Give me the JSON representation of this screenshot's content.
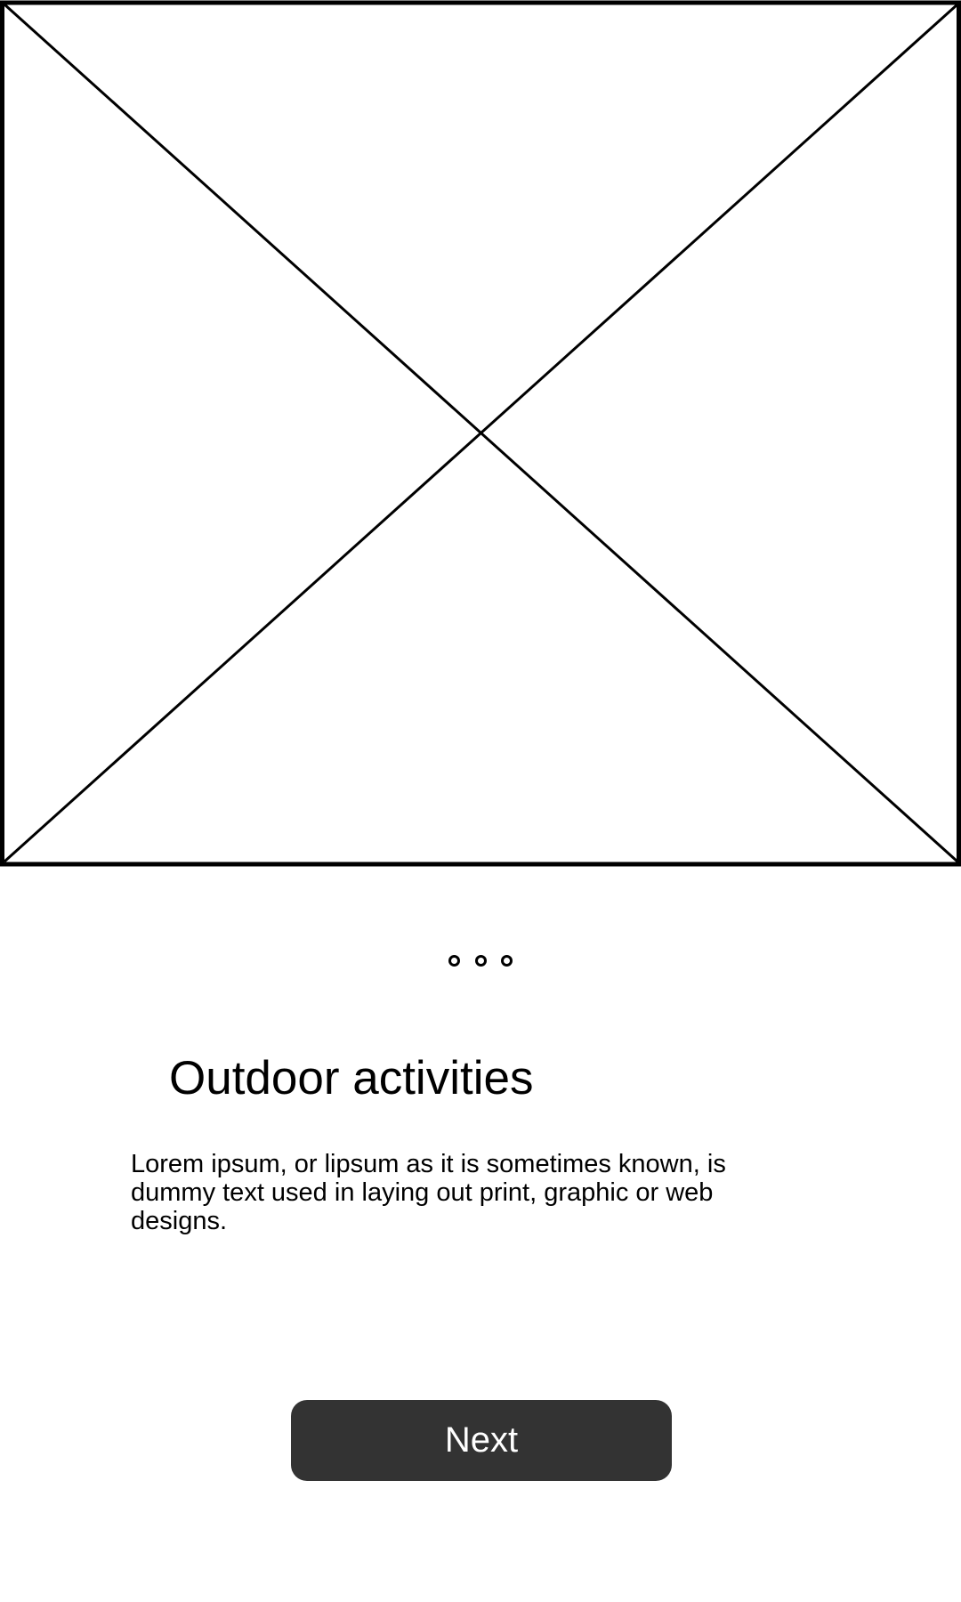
{
  "screen": {
    "title": "Outdoor activities",
    "description": "Lorem ipsum, or lipsum as it is sometimes known, is dummy text used in laying out print, graphic or web designs."
  },
  "hero": {
    "icon": "image-placeholder-icon"
  },
  "pager": {
    "page_count": 3,
    "icon": "circle-outline-icon"
  },
  "actions": {
    "next_label": "Next",
    "button_color": "#333333",
    "button_text_color": "#ffffff"
  }
}
